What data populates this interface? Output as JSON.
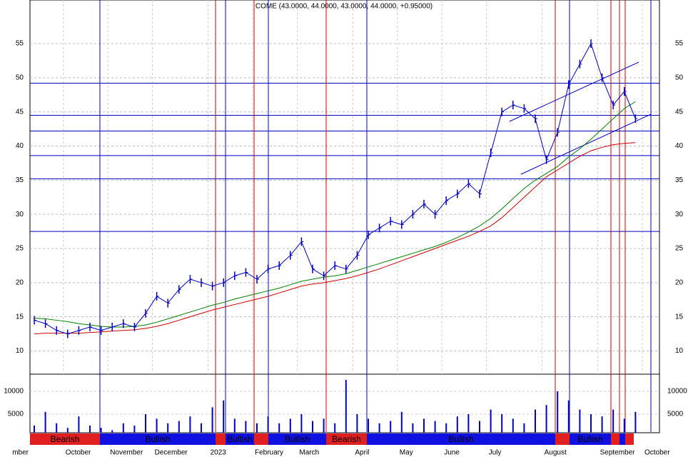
{
  "chart_data": {
    "type": "line",
    "title": "COME (43.0000, 44.0000, 43.0000, 44.0000, +0.95000)",
    "categories": [
      "mber",
      null,
      null,
      "October",
      null,
      null,
      null,
      "November",
      null,
      null,
      null,
      "December",
      null,
      null,
      null,
      null,
      "2023",
      null,
      null,
      null,
      "February",
      null,
      null,
      null,
      "March",
      null,
      null,
      null,
      null,
      "April",
      null,
      null,
      null,
      "May",
      null,
      null,
      null,
      "June",
      null,
      null,
      null,
      "July",
      null,
      null,
      null,
      null,
      "August",
      null,
      null,
      null,
      null,
      "September",
      null,
      null,
      null,
      "October"
    ],
    "price": {
      "color": "#0000c0",
      "values": [
        14.5,
        14,
        13,
        12.5,
        13,
        13.5,
        13,
        13.5,
        14,
        13.5,
        15.5,
        18,
        17,
        19,
        20.5,
        20,
        19.5,
        20,
        21,
        21.5,
        20.5,
        22,
        22.5,
        24,
        26,
        22,
        21,
        22.5,
        22,
        24,
        27,
        28,
        29,
        28.5,
        30,
        31.5,
        30,
        32,
        33,
        34.5,
        33,
        39,
        45,
        46,
        45.5,
        44,
        38,
        42,
        49,
        52,
        55,
        50,
        46,
        48,
        44,
        null
      ]
    },
    "ma_short": {
      "color": "#008000",
      "values": [
        14.8,
        14.7,
        14.5,
        14.3,
        14,
        13.8,
        13.6,
        13.5,
        13.5,
        13.6,
        13.8,
        14.2,
        14.7,
        15.2,
        15.7,
        16.2,
        16.7,
        17.1,
        17.6,
        18,
        18.4,
        18.8,
        19.2,
        19.7,
        20.2,
        20.5,
        20.8,
        21,
        21.3,
        21.8,
        22.3,
        22.8,
        23.3,
        23.8,
        24.3,
        24.8,
        25.3,
        25.9,
        26.6,
        27.4,
        28.3,
        29.4,
        30.8,
        32.3,
        33.8,
        35,
        36,
        37,
        38.4,
        39.6,
        41,
        42.5,
        44,
        45.5,
        46.5,
        null
      ]
    },
    "ma_long": {
      "color": "#d00000",
      "values": [
        12.5,
        12.6,
        12.6,
        12.6,
        12.6,
        12.7,
        12.8,
        12.9,
        13,
        13.1,
        13.3,
        13.6,
        14,
        14.5,
        15,
        15.5,
        16,
        16.4,
        16.8,
        17.2,
        17.6,
        18,
        18.5,
        19,
        19.5,
        19.8,
        20,
        20.3,
        20.6,
        21,
        21.5,
        22,
        22.6,
        23.2,
        23.8,
        24.4,
        25,
        25.6,
        26.2,
        26.8,
        27.5,
        28.3,
        29.5,
        31,
        32.5,
        34,
        35.5,
        36.5,
        37.5,
        38.5,
        39.3,
        39.8,
        40.2,
        40.4,
        40.5,
        null
      ]
    },
    "levels": {
      "color": "#0000c0",
      "values": [
        49.2,
        44.5,
        42.2,
        38.6,
        35.2,
        27.5
      ]
    },
    "ylim": [
      6.6,
      59.5
    ],
    "yticks": [
      10,
      15,
      20,
      25,
      30,
      35,
      40,
      45,
      50,
      55
    ],
    "grid": true,
    "volume": {
      "color": "#0000c0",
      "values": [
        2500,
        5500,
        3000,
        2000,
        4500,
        2500,
        2000,
        1500,
        3000,
        2500,
        5000,
        4000,
        3000,
        3500,
        4500,
        3000,
        6500,
        8000,
        4000,
        3500,
        3000,
        4500,
        3000,
        4000,
        5000,
        3500,
        4000,
        3000,
        12500,
        5000,
        4000,
        3000,
        3500,
        5500,
        3000,
        4000,
        3500,
        3000,
        4500,
        5000,
        3500,
        6000,
        5000,
        4000,
        3000,
        6000,
        7000,
        10000,
        8000,
        6000,
        5000,
        4500,
        6000,
        4000,
        5500,
        null
      ]
    },
    "vol_ylim": [
      0,
      13750
    ],
    "vol_yticks": [
      5000,
      10000
    ],
    "sentiment": [
      {
        "label": "Bearish",
        "color": "#e02020"
      },
      {
        "label": "Bullish",
        "color": "#1010e0"
      },
      {
        "color": "#e02020"
      },
      {
        "label": "Bullish",
        "color": "#1010e0"
      },
      {
        "color": "#e02020"
      },
      {
        "label": "Bullish",
        "color": "#1010e0"
      },
      {
        "label": "Bearish",
        "color": "#e02020"
      },
      {
        "label": "Bullish",
        "color": "#1010e0"
      },
      {
        "color": "#e02020"
      },
      {
        "label": "Bullish",
        "color": "#1010e0"
      },
      {
        "color": "#e02020"
      },
      {
        "color": "#1010e0"
      },
      {
        "color": "#e02020"
      }
    ]
  }
}
